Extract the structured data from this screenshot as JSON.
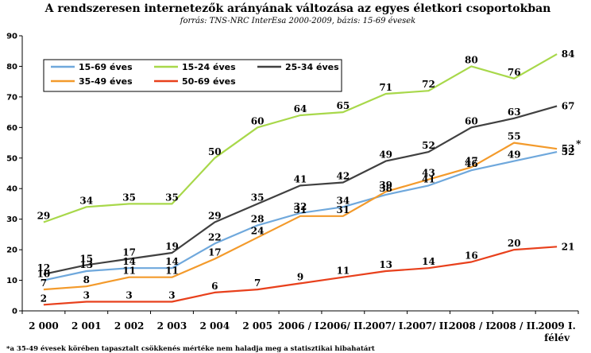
{
  "chart_data": {
    "type": "line",
    "title": "A rendszeresen internetezők arányának változása az egyes életkori csoportokban",
    "subtitle": "forrás: TNS-NRC InterEsa 2000-2009, bázis: 15-69 évesek",
    "categories": [
      "2 000",
      "2 001",
      "2 002",
      "2 003",
      "2 004",
      "2 005",
      "2006 / I.",
      "2006/ II.",
      "2007/ I.",
      "2007/ II.",
      "2008 / I.",
      "2008 / II.",
      "2009 I. félév"
    ],
    "ylim": [
      0,
      90
    ],
    "yticks": [
      0,
      10,
      20,
      30,
      40,
      50,
      60,
      70,
      80,
      90
    ],
    "grid": false,
    "legend_position": "top-left",
    "series": [
      {
        "name": "15-69 éves",
        "color": "#6fa8dc",
        "values": [
          10,
          13,
          14,
          14,
          22,
          28,
          32,
          34,
          38,
          41,
          46,
          49,
          52
        ]
      },
      {
        "name": "15-24 éves",
        "color": "#a8d84a",
        "values": [
          29,
          34,
          35,
          35,
          50,
          60,
          64,
          65,
          71,
          72,
          80,
          76,
          84
        ]
      },
      {
        "name": "25-34 éves",
        "color": "#404040",
        "values": [
          12,
          15,
          17,
          19,
          29,
          35,
          41,
          42,
          49,
          52,
          60,
          63,
          67
        ]
      },
      {
        "name": "35-49 éves",
        "color": "#f39a2b",
        "values": [
          7,
          8,
          11,
          11,
          17,
          24,
          31,
          31,
          39,
          43,
          47,
          55,
          53
        ]
      },
      {
        "name": "50-69 éves",
        "color": "#e8401c",
        "values": [
          2,
          3,
          3,
          3,
          6,
          7,
          9,
          11,
          13,
          14,
          16,
          20,
          21
        ]
      }
    ],
    "annotation": "*",
    "footnote": "*a 35-49 évesek körében tapasztalt csökkenés mértéke nem haladja meg a statisztikai hibahatárt"
  }
}
